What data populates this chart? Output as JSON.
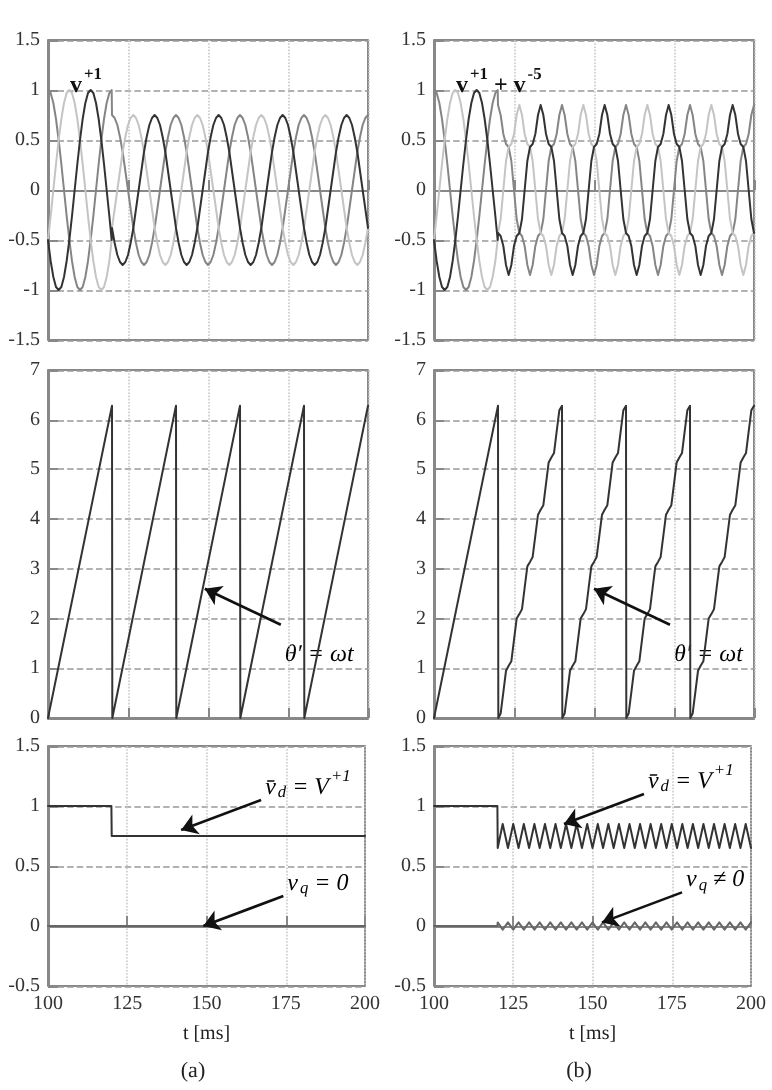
{
  "chart_data": [
    {
      "type": "line",
      "title": "v$^{+1}$",
      "xlim": [
        100,
        200
      ],
      "xticks": [
        100,
        125,
        150,
        175,
        200
      ],
      "ylim": [
        -1.5,
        1.5
      ],
      "yticks": [
        -1.5,
        -1,
        -0.5,
        0,
        0.5,
        1,
        1.5
      ],
      "grid": true,
      "tick_labels": "y",
      "x": [
        100,
        100.83,
        101.67,
        102.5,
        103.33,
        104.17,
        105,
        105.83,
        106.67,
        107.5,
        108.33,
        109.17,
        110,
        110.83,
        111.67,
        112.5,
        113.33,
        114.17,
        115,
        115.83,
        116.67,
        117.5,
        118.33,
        119.17,
        119.9,
        120,
        120.83,
        121.67,
        122.5,
        123.33,
        124.17,
        125,
        125.83,
        126.67,
        127.5,
        128.33,
        129.17,
        130,
        130.83,
        131.67,
        132.5,
        133.33,
        134.17,
        135,
        135.83,
        136.67,
        137.5,
        138.33,
        139.17,
        140,
        140.83,
        141.67,
        142.5,
        143.33,
        144.17,
        145,
        145.83,
        146.67,
        147.5,
        148.33,
        149.17,
        150,
        150.83,
        151.67,
        152.5,
        153.33,
        154.17,
        155,
        155.83,
        156.67,
        157.5,
        158.33,
        159.17,
        160,
        160.83,
        161.67,
        162.5,
        163.33,
        164.17,
        165,
        165.83,
        166.67,
        167.5,
        168.33,
        169.17,
        170,
        170.83,
        171.67,
        172.5,
        173.33,
        174.17,
        175,
        175.83,
        176.67,
        177.5,
        178.33,
        179.17,
        180,
        180.83,
        181.67,
        182.5,
        183.33,
        184.17,
        185,
        185.83,
        186.67,
        187.5,
        188.33,
        189.17,
        190,
        190.83,
        191.67,
        192.5,
        193.33,
        194.17,
        195,
        195.83,
        196.67,
        197.5,
        198.33,
        199.17,
        200
      ],
      "series": [
        {
          "color": "#858585",
          "values": [
            1,
            0.97,
            0.87,
            0.71,
            0.5,
            0.26,
            0,
            -0.26,
            -0.5,
            -0.71,
            -0.87,
            -0.97,
            -1,
            -0.97,
            -0.87,
            -0.71,
            -0.5,
            -0.26,
            0,
            0.26,
            0.5,
            0.71,
            0.87,
            0.97,
            1,
            0.75,
            0.72,
            0.65,
            0.53,
            0.38,
            0.19,
            0,
            -0.19,
            -0.38,
            -0.53,
            -0.65,
            -0.72,
            -0.75,
            -0.72,
            -0.65,
            -0.53,
            -0.38,
            -0.19,
            0,
            0.19,
            0.38,
            0.53,
            0.65,
            0.72,
            0.75,
            0.72,
            0.65,
            0.53,
            0.38,
            0.19,
            0,
            -0.19,
            -0.38,
            -0.53,
            -0.65,
            -0.72,
            -0.75,
            -0.72,
            -0.65,
            -0.53,
            -0.38,
            -0.19,
            0,
            0.19,
            0.38,
            0.53,
            0.65,
            0.72,
            0.75,
            0.72,
            0.65,
            0.53,
            0.38,
            0.19,
            0,
            -0.19,
            -0.38,
            -0.53,
            -0.65,
            -0.72,
            -0.75,
            -0.72,
            -0.65,
            -0.53,
            -0.38,
            -0.19,
            0,
            0.19,
            0.38,
            0.53,
            0.65,
            0.72,
            0.75,
            0.72,
            0.65,
            0.53,
            0.38,
            0.19,
            0,
            -0.19,
            -0.38,
            -0.53,
            -0.65,
            -0.72,
            -0.75,
            -0.72,
            -0.65,
            -0.53,
            -0.38,
            -0.19,
            0,
            0.19,
            0.38,
            0.53,
            0.65,
            0.72,
            0.75
          ]
        },
        {
          "color": "#c4c4c4",
          "values": [
            -0.5,
            -0.26,
            0,
            0.26,
            0.5,
            0.71,
            0.87,
            0.97,
            1,
            0.97,
            0.87,
            0.71,
            0.5,
            0.26,
            0,
            -0.26,
            -0.5,
            -0.71,
            -0.87,
            -0.97,
            -1,
            -0.97,
            -0.87,
            -0.71,
            -0.5,
            -0.38,
            -0.19,
            0,
            0.19,
            0.38,
            0.53,
            0.65,
            0.72,
            0.75,
            0.72,
            0.65,
            0.53,
            0.38,
            0.19,
            0,
            -0.19,
            -0.38,
            -0.53,
            -0.65,
            -0.72,
            -0.75,
            -0.72,
            -0.65,
            -0.53,
            -0.38,
            -0.19,
            0,
            0.19,
            0.38,
            0.53,
            0.65,
            0.72,
            0.75,
            0.72,
            0.65,
            0.53,
            0.38,
            0.19,
            0,
            -0.19,
            -0.38,
            -0.53,
            -0.65,
            -0.72,
            -0.75,
            -0.72,
            -0.65,
            -0.53,
            -0.38,
            -0.19,
            0,
            0.19,
            0.38,
            0.53,
            0.65,
            0.72,
            0.75,
            0.72,
            0.65,
            0.53,
            0.38,
            0.19,
            0,
            -0.19,
            -0.38,
            -0.53,
            -0.65,
            -0.72,
            -0.75,
            -0.72,
            -0.65,
            -0.53,
            -0.38,
            -0.19,
            0,
            0.19,
            0.38,
            0.53,
            0.65,
            0.72,
            0.75,
            0.72,
            0.65,
            0.53,
            0.38,
            0.19,
            0,
            -0.19,
            -0.38,
            -0.53,
            -0.65,
            -0.72,
            -0.75,
            -0.72,
            -0.65,
            -0.53,
            -0.38
          ]
        },
        {
          "color": "#333333",
          "values": [
            -0.5,
            -0.71,
            -0.87,
            -0.97,
            -1,
            -0.97,
            -0.87,
            -0.71,
            -0.5,
            -0.26,
            0,
            0.26,
            0.5,
            0.71,
            0.87,
            0.97,
            1,
            0.97,
            0.87,
            0.71,
            0.5,
            0.26,
            0,
            -0.26,
            -0.5,
            -0.38,
            -0.53,
            -0.65,
            -0.72,
            -0.75,
            -0.72,
            -0.65,
            -0.53,
            -0.38,
            -0.19,
            0,
            0.19,
            0.38,
            0.53,
            0.65,
            0.72,
            0.75,
            0.72,
            0.65,
            0.53,
            0.38,
            0.19,
            0,
            -0.19,
            -0.38,
            -0.53,
            -0.65,
            -0.72,
            -0.75,
            -0.72,
            -0.65,
            -0.53,
            -0.38,
            -0.19,
            0,
            0.19,
            0.38,
            0.53,
            0.65,
            0.72,
            0.75,
            0.72,
            0.65,
            0.53,
            0.38,
            0.19,
            0,
            -0.19,
            -0.38,
            -0.53,
            -0.65,
            -0.72,
            -0.75,
            -0.72,
            -0.65,
            -0.53,
            -0.38,
            -0.19,
            0,
            0.19,
            0.38,
            0.53,
            0.65,
            0.72,
            0.75,
            0.72,
            0.65,
            0.53,
            0.38,
            0.19,
            0,
            -0.19,
            -0.38,
            -0.53,
            -0.65,
            -0.72,
            -0.75,
            -0.72,
            -0.65,
            -0.53,
            -0.38,
            -0.19,
            0,
            0.19,
            0.38,
            0.53,
            0.65,
            0.72,
            0.75,
            0.72,
            0.65,
            0.53,
            0.38,
            0.19,
            0,
            -0.19,
            -0.38
          ]
        }
      ]
    },
    {
      "type": "line",
      "title": "v$^{+1}$ + v$^{-5}$",
      "xlim": [
        100,
        200
      ],
      "xticks": [
        100,
        125,
        150,
        175,
        200
      ],
      "ylim": [
        -1.5,
        1.5
      ],
      "yticks": [
        -1.5,
        -1,
        -0.5,
        0,
        0.5,
        1,
        1.5
      ],
      "grid": true,
      "tick_labels": "y",
      "x": [
        100,
        100.83,
        101.67,
        102.5,
        103.33,
        104.17,
        105,
        105.83,
        106.67,
        107.5,
        108.33,
        109.17,
        110,
        110.83,
        111.67,
        112.5,
        113.33,
        114.17,
        115,
        115.83,
        116.67,
        117.5,
        118.33,
        119.17,
        119.9,
        120,
        120.83,
        121.67,
        122.5,
        123.33,
        124.17,
        125,
        125.83,
        126.67,
        127.5,
        128.33,
        129.17,
        130,
        130.83,
        131.67,
        132.5,
        133.33,
        134.17,
        135,
        135.83,
        136.67,
        137.5,
        138.33,
        139.17,
        140,
        140.83,
        141.67,
        142.5,
        143.33,
        144.17,
        145,
        145.83,
        146.67,
        147.5,
        148.33,
        149.17,
        150,
        150.83,
        151.67,
        152.5,
        153.33,
        154.17,
        155,
        155.83,
        156.67,
        157.5,
        158.33,
        159.17,
        160,
        160.83,
        161.67,
        162.5,
        163.33,
        164.17,
        165,
        165.83,
        166.67,
        167.5,
        168.33,
        169.17,
        170,
        170.83,
        171.67,
        172.5,
        173.33,
        174.17,
        175,
        175.83,
        176.67,
        177.5,
        178.33,
        179.17,
        180,
        180.83,
        181.67,
        182.5,
        183.33,
        184.17,
        185,
        185.83,
        186.67,
        187.5,
        188.33,
        189.17,
        190,
        190.83,
        191.67,
        192.5,
        193.33,
        194.17,
        195,
        195.83,
        196.67,
        197.5,
        198.33,
        199.17,
        200
      ],
      "series": [
        {
          "color": "#858585",
          "values": [
            1,
            0.97,
            0.87,
            0.71,
            0.5,
            0.26,
            0,
            -0.26,
            -0.5,
            -0.71,
            -0.87,
            -0.97,
            -1,
            -0.97,
            -0.87,
            -0.71,
            -0.5,
            -0.26,
            0,
            0.26,
            0.5,
            0.71,
            0.87,
            0.97,
            1,
            0.85,
            0.75,
            0.56,
            0.46,
            0.43,
            0.29,
            0,
            -0.29,
            -0.43,
            -0.46,
            -0.56,
            -0.75,
            -0.85,
            -0.75,
            -0.56,
            -0.46,
            -0.43,
            -0.29,
            0,
            0.29,
            0.43,
            0.46,
            0.56,
            0.75,
            0.85,
            0.75,
            0.56,
            0.46,
            0.43,
            0.29,
            0,
            -0.29,
            -0.43,
            -0.46,
            -0.56,
            -0.75,
            -0.85,
            -0.75,
            -0.56,
            -0.46,
            -0.43,
            -0.29,
            0,
            0.29,
            0.43,
            0.46,
            0.56,
            0.75,
            0.85,
            0.75,
            0.56,
            0.46,
            0.43,
            0.29,
            0,
            -0.29,
            -0.43,
            -0.46,
            -0.56,
            -0.75,
            -0.85,
            -0.75,
            -0.56,
            -0.46,
            -0.43,
            -0.29,
            0,
            0.29,
            0.43,
            0.46,
            0.56,
            0.75,
            0.85,
            0.75,
            0.56,
            0.46,
            0.43,
            0.29,
            0,
            -0.29,
            -0.43,
            -0.46,
            -0.56,
            -0.75,
            -0.85,
            -0.75,
            -0.56,
            -0.46,
            -0.43,
            -0.29,
            0,
            0.29,
            0.43,
            0.46,
            0.56,
            0.75,
            0.85
          ]
        },
        {
          "color": "#c4c4c4",
          "values": [
            -0.5,
            -0.26,
            0,
            0.26,
            0.5,
            0.71,
            0.87,
            0.97,
            1,
            0.97,
            0.87,
            0.71,
            0.5,
            0.26,
            0,
            -0.26,
            -0.5,
            -0.71,
            -0.87,
            -0.97,
            -1,
            -0.97,
            -0.87,
            -0.71,
            -0.5,
            -0.43,
            -0.29,
            0,
            0.29,
            0.43,
            0.46,
            0.56,
            0.75,
            0.85,
            0.75,
            0.56,
            0.46,
            0.43,
            0.29,
            0,
            -0.29,
            -0.43,
            -0.46,
            -0.56,
            -0.75,
            -0.85,
            -0.75,
            -0.56,
            -0.46,
            -0.43,
            -0.29,
            0,
            0.29,
            0.43,
            0.46,
            0.56,
            0.75,
            0.85,
            0.75,
            0.56,
            0.46,
            0.43,
            0.29,
            0,
            -0.29,
            -0.43,
            -0.46,
            -0.56,
            -0.75,
            -0.85,
            -0.75,
            -0.56,
            -0.46,
            -0.43,
            -0.29,
            0,
            0.29,
            0.43,
            0.46,
            0.56,
            0.75,
            0.85,
            0.75,
            0.56,
            0.46,
            0.43,
            0.29,
            0,
            -0.29,
            -0.43,
            -0.46,
            -0.56,
            -0.75,
            -0.85,
            -0.75,
            -0.56,
            -0.46,
            -0.43,
            -0.29,
            0,
            0.29,
            0.43,
            0.46,
            0.56,
            0.75,
            0.85,
            0.75,
            0.56,
            0.46,
            0.43,
            0.29,
            0,
            -0.29,
            -0.43,
            -0.46,
            -0.56,
            -0.75,
            -0.85,
            -0.75,
            -0.56,
            -0.46,
            -0.43
          ]
        },
        {
          "color": "#333333",
          "values": [
            -0.5,
            -0.71,
            -0.87,
            -0.97,
            -1,
            -0.97,
            -0.87,
            -0.71,
            -0.5,
            -0.26,
            0,
            0.26,
            0.5,
            0.71,
            0.87,
            0.97,
            1,
            0.97,
            0.87,
            0.71,
            0.5,
            0.26,
            0,
            -0.26,
            -0.5,
            -0.43,
            -0.46,
            -0.56,
            -0.75,
            -0.85,
            -0.75,
            -0.56,
            -0.46,
            -0.43,
            -0.29,
            0,
            0.29,
            0.43,
            0.46,
            0.56,
            0.75,
            0.85,
            0.75,
            0.56,
            0.46,
            0.43,
            0.29,
            0,
            -0.29,
            -0.43,
            -0.46,
            -0.56,
            -0.75,
            -0.85,
            -0.75,
            -0.56,
            -0.46,
            -0.43,
            -0.29,
            0,
            0.29,
            0.43,
            0.46,
            0.56,
            0.75,
            0.85,
            0.75,
            0.56,
            0.46,
            0.43,
            0.29,
            0,
            -0.29,
            -0.43,
            -0.46,
            -0.56,
            -0.75,
            -0.85,
            -0.75,
            -0.56,
            -0.46,
            -0.43,
            -0.29,
            0,
            0.29,
            0.43,
            0.46,
            0.56,
            0.75,
            0.85,
            0.75,
            0.56,
            0.46,
            0.43,
            0.29,
            0,
            -0.29,
            -0.43,
            -0.46,
            -0.56,
            -0.75,
            -0.85,
            -0.75,
            -0.56,
            -0.46,
            -0.43,
            -0.29,
            0,
            0.29,
            0.43,
            0.46,
            0.56,
            0.75,
            0.85,
            0.75,
            0.56,
            0.46,
            0.43,
            0.29,
            0,
            -0.29,
            -0.43
          ]
        }
      ]
    },
    {
      "type": "line",
      "xlim": [
        100,
        200
      ],
      "xticks": [
        100,
        125,
        150,
        175,
        200
      ],
      "ylim": [
        0,
        7
      ],
      "yticks": [
        0,
        1,
        2,
        3,
        4,
        5,
        6,
        7
      ],
      "grid": true,
      "tick_labels": "y",
      "annotations": [
        {
          "text": "θ′ = ωt",
          "x": 149,
          "y": 2.6
        }
      ],
      "series": [
        {
          "color": "#333333",
          "x": [
            100,
            120,
            120.1,
            140,
            140.1,
            160,
            160.1,
            180,
            180.1,
            200
          ],
          "values": [
            0,
            6.28,
            0,
            6.28,
            0,
            6.28,
            0,
            6.28,
            0,
            6.28
          ]
        }
      ]
    },
    {
      "type": "line",
      "xlim": [
        100,
        200
      ],
      "xticks": [
        100,
        125,
        150,
        175,
        200
      ],
      "ylim": [
        0,
        7
      ],
      "yticks": [
        0,
        1,
        2,
        3,
        4,
        5,
        6,
        7
      ],
      "grid": true,
      "tick_labels": "y",
      "annotations": [
        {
          "text": "θ′ = ωt",
          "x": 150,
          "y": 2.6
        }
      ],
      "series": [
        {
          "color": "#333333",
          "x": [
            100,
            120,
            120.1,
            120.83,
            121.67,
            122.5,
            123.33,
            124.17,
            125,
            125.83,
            126.67,
            127.5,
            128.33,
            129.17,
            130,
            130.83,
            131.67,
            132.5,
            133.33,
            134.17,
            135,
            135.83,
            136.67,
            137.5,
            138.33,
            139.17,
            140,
            140.1,
            140.83,
            141.67,
            142.5,
            143.33,
            144.17,
            145,
            145.83,
            146.67,
            147.5,
            148.33,
            149.17,
            150,
            150.83,
            151.67,
            152.5,
            153.33,
            154.17,
            155,
            155.83,
            156.67,
            157.5,
            158.33,
            159.17,
            160,
            160.1,
            160.83,
            161.67,
            162.5,
            163.33,
            164.17,
            165,
            165.83,
            166.67,
            167.5,
            168.33,
            169.17,
            170,
            170.83,
            171.67,
            172.5,
            173.33,
            174.17,
            175,
            175.83,
            176.67,
            177.5,
            178.33,
            179.17,
            180,
            180.1,
            180.83,
            181.67,
            182.5,
            183.33,
            184.17,
            185,
            185.83,
            186.67,
            187.5,
            188.33,
            189.17,
            190,
            190.83,
            191.67,
            192.5,
            193.33,
            194.17,
            195,
            195.83,
            196.67,
            197.5,
            198.33,
            199.17,
            200
          ],
          "values": [
            0,
            6.28,
            0,
            0.09,
            0.52,
            0.95,
            1.05,
            1.14,
            1.57,
            2,
            2.09,
            2.19,
            2.62,
            3.05,
            3.14,
            3.24,
            3.67,
            4.09,
            4.19,
            4.28,
            4.71,
            5.14,
            5.24,
            5.33,
            5.76,
            6.19,
            6.28,
            0,
            0.09,
            0.52,
            0.95,
            1.05,
            1.14,
            1.57,
            2,
            2.09,
            2.19,
            2.62,
            3.05,
            3.14,
            3.24,
            3.67,
            4.09,
            4.19,
            4.28,
            4.71,
            5.14,
            5.24,
            5.33,
            5.76,
            6.19,
            6.28,
            0,
            0.09,
            0.52,
            0.95,
            1.05,
            1.14,
            1.57,
            2,
            2.09,
            2.19,
            2.62,
            3.05,
            3.14,
            3.24,
            3.67,
            4.09,
            4.19,
            4.28,
            4.71,
            5.14,
            5.24,
            5.33,
            5.76,
            6.19,
            6.28,
            0,
            0.09,
            0.52,
            0.95,
            1.05,
            1.14,
            1.57,
            2,
            2.09,
            2.19,
            2.62,
            3.05,
            3.14,
            3.24,
            3.67,
            4.09,
            4.19,
            4.28,
            4.71,
            5.14,
            5.24,
            5.33,
            5.76,
            6.19,
            6.28
          ]
        }
      ]
    },
    {
      "type": "line",
      "xlabel": "t [ms]",
      "xlim": [
        100,
        200
      ],
      "xticks": [
        100,
        125,
        150,
        175,
        200
      ],
      "ylim": [
        -0.5,
        1.5
      ],
      "yticks": [
        -0.5,
        0,
        0.5,
        1,
        1.5
      ],
      "grid": true,
      "annotations": [
        {
          "text": "v̄$_{d}$ = V$^{+1}$",
          "x": 142,
          "y": 0.8
        },
        {
          "text": "v$_{q}$ = 0",
          "x": 149,
          "y": 0
        },
        "(a)"
      ],
      "series": [
        {
          "color": "#333333",
          "x": [
            100,
            120,
            120.1,
            200
          ],
          "values": [
            1,
            1,
            0.75,
            0.75
          ]
        },
        {
          "color": "#666666",
          "x": [
            100,
            200
          ],
          "values": [
            0,
            0
          ]
        }
      ]
    },
    {
      "type": "line",
      "xlabel": "t [ms]",
      "xlim": [
        100,
        200
      ],
      "xticks": [
        100,
        125,
        150,
        175,
        200
      ],
      "ylim": [
        -0.5,
        1.5
      ],
      "yticks": [
        -0.5,
        0,
        0.5,
        1,
        1.5
      ],
      "grid": true,
      "annotations": [
        {
          "text": "v̄$_{d}$ = V$^{+1}$",
          "x": 141,
          "y": 0.85
        },
        {
          "text": "v$_{q}$ ≠ 0",
          "x": 153,
          "y": 0.03
        },
        "(b)"
      ],
      "series": [
        {
          "color": "#333333",
          "x": [
            100,
            120,
            120.1,
            121.67,
            123.33,
            125,
            126.67,
            128.33,
            130,
            131.67,
            133.33,
            135,
            136.67,
            138.33,
            140,
            141.67,
            143.33,
            145,
            146.67,
            148.33,
            150,
            151.67,
            153.33,
            155,
            156.67,
            158.33,
            160,
            161.67,
            163.33,
            165,
            166.67,
            168.33,
            170,
            171.67,
            173.33,
            175,
            176.67,
            178.33,
            180,
            181.67,
            183.33,
            185,
            186.67,
            188.33,
            190,
            191.67,
            193.33,
            195,
            196.67,
            198.33,
            200
          ],
          "values": [
            1,
            1,
            0.65,
            0.85,
            0.65,
            0.85,
            0.65,
            0.85,
            0.65,
            0.85,
            0.65,
            0.85,
            0.65,
            0.85,
            0.65,
            0.85,
            0.65,
            0.85,
            0.65,
            0.85,
            0.65,
            0.85,
            0.65,
            0.85,
            0.65,
            0.85,
            0.65,
            0.85,
            0.65,
            0.85,
            0.65,
            0.85,
            0.65,
            0.85,
            0.65,
            0.85,
            0.65,
            0.85,
            0.65,
            0.85,
            0.65,
            0.85,
            0.65,
            0.85,
            0.65,
            0.85,
            0.65,
            0.85,
            0.65,
            0.85,
            0.65
          ]
        },
        {
          "color": "#666666",
          "x": [
            100,
            120,
            120.1,
            121.67,
            123.33,
            125,
            126.67,
            128.33,
            130,
            131.67,
            133.33,
            135,
            136.67,
            138.33,
            140,
            141.67,
            143.33,
            145,
            146.67,
            148.33,
            150,
            151.67,
            153.33,
            155,
            156.67,
            158.33,
            160,
            161.67,
            163.33,
            165,
            166.67,
            168.33,
            170,
            171.67,
            173.33,
            175,
            176.67,
            178.33,
            180,
            181.67,
            183.33,
            185,
            186.67,
            188.33,
            190,
            191.67,
            193.33,
            195,
            196.67,
            198.33,
            200
          ],
          "values": [
            0,
            0,
            0.03,
            -0.03,
            0.03,
            -0.03,
            0.03,
            -0.03,
            0.03,
            -0.03,
            0.03,
            -0.03,
            0.03,
            -0.03,
            0.03,
            -0.03,
            0.03,
            -0.03,
            0.03,
            -0.03,
            0.03,
            -0.03,
            0.03,
            -0.03,
            0.03,
            -0.03,
            0.03,
            -0.03,
            0.03,
            -0.03,
            0.03,
            -0.03,
            0.03,
            -0.03,
            0.03,
            -0.03,
            0.03,
            -0.03,
            0.03,
            -0.03,
            0.03,
            -0.03,
            0.03,
            -0.03,
            0.03,
            -0.03,
            0.03,
            -0.03,
            0.03,
            -0.03,
            0.03
          ]
        }
      ]
    }
  ]
}
